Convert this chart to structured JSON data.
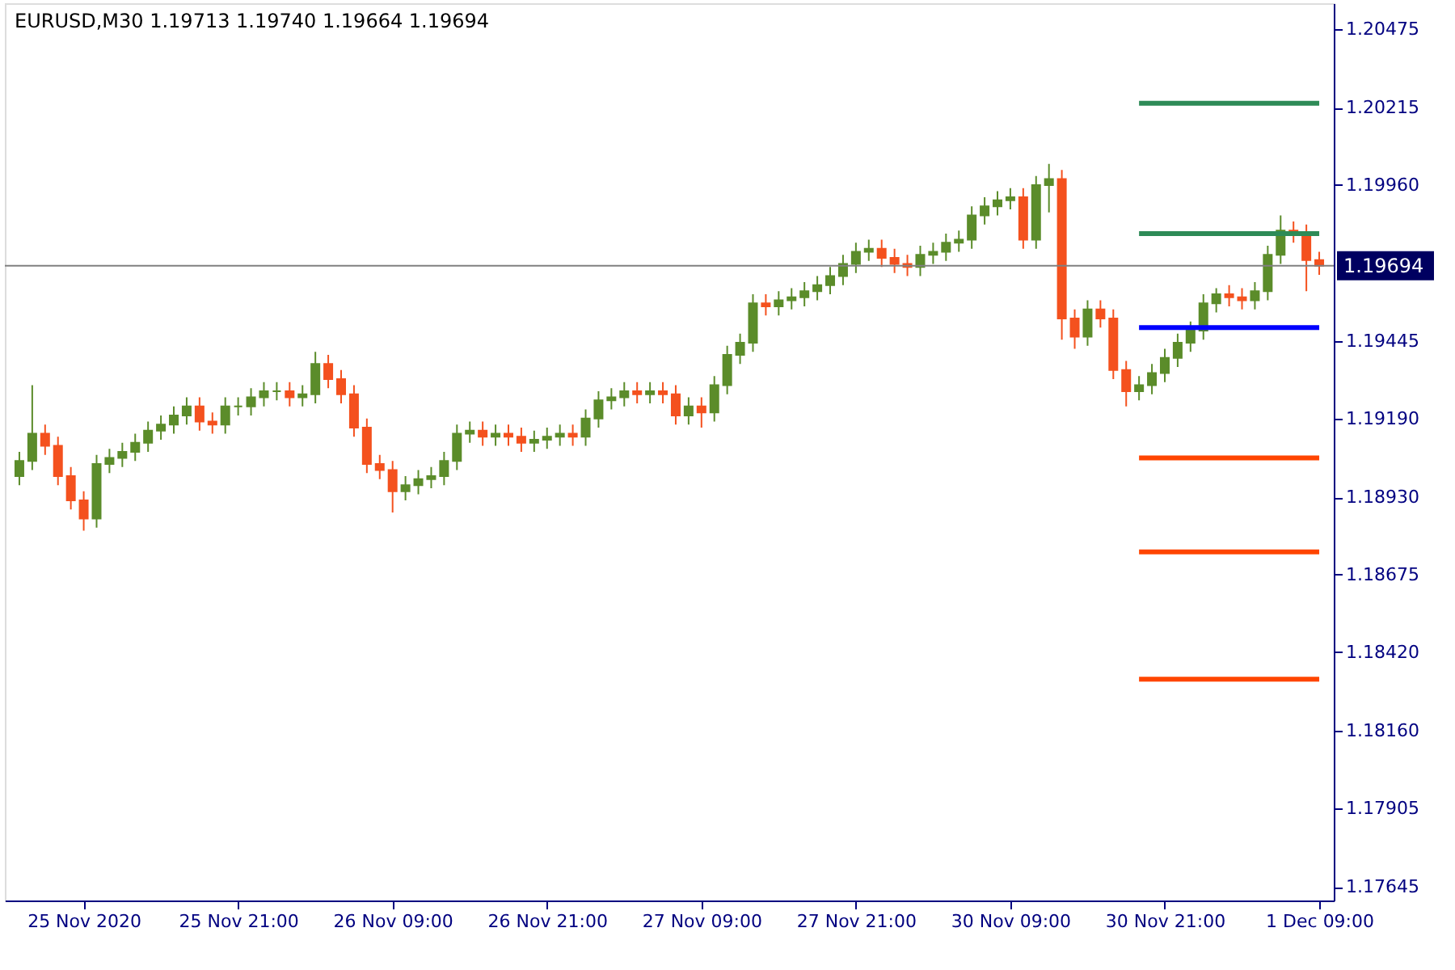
{
  "chart_data": {
    "type": "candlestick",
    "title": "EURUSD,M30  1.19713 1.19740 1.19664 1.19694",
    "categories": [
      null,
      null,
      null,
      null,
      null,
      "25 Nov 2020",
      null,
      null,
      null,
      null,
      null,
      null,
      null,
      null,
      null,
      null,
      null,
      "25 Nov 21:00",
      null,
      null,
      null,
      null,
      null,
      null,
      null,
      null,
      null,
      null,
      null,
      "26 Nov 09:00",
      null,
      null,
      null,
      null,
      null,
      null,
      null,
      null,
      null,
      null,
      null,
      "26 Nov 21:00",
      null,
      null,
      null,
      null,
      null,
      null,
      null,
      null,
      null,
      null,
      null,
      "27 Nov 09:00",
      null,
      null,
      null,
      null,
      null,
      null,
      null,
      null,
      null,
      null,
      null,
      "27 Nov 21:00",
      null,
      null,
      null,
      null,
      null,
      null,
      null,
      null,
      null,
      null,
      null,
      "30 Nov 09:00",
      null,
      null,
      null,
      null,
      null,
      null,
      null,
      null,
      null,
      null,
      null,
      "30 Nov 21:00",
      null,
      null,
      null,
      null,
      null,
      null,
      null,
      null,
      null,
      null,
      null,
      "1 Dec 09:00"
    ],
    "ohlc": [
      [
        1.19,
        1.1908,
        1.1897,
        1.1905
      ],
      [
        1.1905,
        1.193,
        1.1902,
        1.1914
      ],
      [
        1.1914,
        1.1917,
        1.1907,
        1.191
      ],
      [
        1.191,
        1.1913,
        1.1897,
        1.19
      ],
      [
        1.19,
        1.1903,
        1.1889,
        1.1892
      ],
      [
        1.1892,
        1.1895,
        1.1882,
        1.1886
      ],
      [
        1.1886,
        1.1907,
        1.1883,
        1.1904
      ],
      [
        1.1904,
        1.1909,
        1.1901,
        1.1906
      ],
      [
        1.1906,
        1.1911,
        1.1903,
        1.1908
      ],
      [
        1.1908,
        1.1914,
        1.1905,
        1.1911
      ],
      [
        1.1911,
        1.1918,
        1.1908,
        1.1915
      ],
      [
        1.1915,
        1.192,
        1.1912,
        1.1917
      ],
      [
        1.1917,
        1.1923,
        1.1914,
        1.192
      ],
      [
        1.192,
        1.1926,
        1.1917,
        1.1923
      ],
      [
        1.1923,
        1.1926,
        1.1915,
        1.1918
      ],
      [
        1.1918,
        1.1921,
        1.1914,
        1.1917
      ],
      [
        1.1917,
        1.1926,
        1.1914,
        1.1923
      ],
      [
        1.1923,
        1.1926,
        1.192,
        1.1923
      ],
      [
        1.1923,
        1.1929,
        1.192,
        1.1926
      ],
      [
        1.1926,
        1.1931,
        1.1923,
        1.1928
      ],
      [
        1.1928,
        1.1931,
        1.1925,
        1.1928
      ],
      [
        1.1928,
        1.1931,
        1.1923,
        1.1926
      ],
      [
        1.1926,
        1.193,
        1.1923,
        1.1927
      ],
      [
        1.1927,
        1.1941,
        1.1924,
        1.1937
      ],
      [
        1.1937,
        1.194,
        1.1929,
        1.1932
      ],
      [
        1.1932,
        1.1935,
        1.1924,
        1.1927
      ],
      [
        1.1927,
        1.193,
        1.1913,
        1.1916
      ],
      [
        1.1916,
        1.1919,
        1.1901,
        1.1904
      ],
      [
        1.1904,
        1.1907,
        1.1899,
        1.1902
      ],
      [
        1.1902,
        1.1905,
        1.1888,
        1.1895
      ],
      [
        1.1895,
        1.19,
        1.1892,
        1.1897
      ],
      [
        1.1897,
        1.1902,
        1.1894,
        1.1899
      ],
      [
        1.1899,
        1.1903,
        1.1896,
        1.19
      ],
      [
        1.19,
        1.1908,
        1.1897,
        1.1905
      ],
      [
        1.1905,
        1.1917,
        1.1902,
        1.1914
      ],
      [
        1.1914,
        1.1918,
        1.1911,
        1.1915
      ],
      [
        1.1915,
        1.1918,
        1.191,
        1.1913
      ],
      [
        1.1913,
        1.1917,
        1.191,
        1.1914
      ],
      [
        1.1914,
        1.1917,
        1.191,
        1.1913
      ],
      [
        1.1913,
        1.1916,
        1.1908,
        1.1911
      ],
      [
        1.1911,
        1.1915,
        1.1908,
        1.1912
      ],
      [
        1.1912,
        1.1916,
        1.1909,
        1.1913
      ],
      [
        1.1913,
        1.1917,
        1.191,
        1.1914
      ],
      [
        1.1914,
        1.1917,
        1.191,
        1.1913
      ],
      [
        1.1913,
        1.1922,
        1.191,
        1.1919
      ],
      [
        1.1919,
        1.1928,
        1.1916,
        1.1925
      ],
      [
        1.1925,
        1.1929,
        1.1922,
        1.1926
      ],
      [
        1.1926,
        1.1931,
        1.1923,
        1.1928
      ],
      [
        1.1928,
        1.1931,
        1.1924,
        1.1927
      ],
      [
        1.1927,
        1.1931,
        1.1924,
        1.1928
      ],
      [
        1.1928,
        1.1931,
        1.1924,
        1.1927
      ],
      [
        1.1927,
        1.193,
        1.1917,
        1.192
      ],
      [
        1.192,
        1.1926,
        1.1917,
        1.1923
      ],
      [
        1.1923,
        1.1926,
        1.1916,
        1.1921
      ],
      [
        1.1921,
        1.1933,
        1.1918,
        1.193
      ],
      [
        1.193,
        1.1943,
        1.1927,
        1.194
      ],
      [
        1.194,
        1.1947,
        1.1937,
        1.1944
      ],
      [
        1.1944,
        1.196,
        1.1941,
        1.1957
      ],
      [
        1.1957,
        1.196,
        1.1953,
        1.1956
      ],
      [
        1.1956,
        1.1961,
        1.1953,
        1.1958
      ],
      [
        1.1958,
        1.1962,
        1.1955,
        1.1959
      ],
      [
        1.1959,
        1.1964,
        1.1956,
        1.1961
      ],
      [
        1.1961,
        1.1966,
        1.1958,
        1.1963
      ],
      [
        1.1963,
        1.1969,
        1.196,
        1.1966
      ],
      [
        1.1966,
        1.1973,
        1.1963,
        1.197
      ],
      [
        1.197,
        1.1977,
        1.1967,
        1.1974
      ],
      [
        1.1974,
        1.1978,
        1.1971,
        1.1975
      ],
      [
        1.1975,
        1.1978,
        1.1969,
        1.1972
      ],
      [
        1.1972,
        1.1975,
        1.1967,
        1.197
      ],
      [
        1.197,
        1.1973,
        1.1966,
        1.1969
      ],
      [
        1.1969,
        1.1976,
        1.1966,
        1.1973
      ],
      [
        1.1973,
        1.1977,
        1.197,
        1.1974
      ],
      [
        1.1974,
        1.198,
        1.1971,
        1.1977
      ],
      [
        1.1977,
        1.1981,
        1.1974,
        1.1978
      ],
      [
        1.1978,
        1.1989,
        1.1975,
        1.1986
      ],
      [
        1.1986,
        1.1992,
        1.1983,
        1.1989
      ],
      [
        1.1989,
        1.1994,
        1.1986,
        1.1991
      ],
      [
        1.1991,
        1.1995,
        1.1988,
        1.1992
      ],
      [
        1.1992,
        1.1995,
        1.1975,
        1.1978
      ],
      [
        1.1978,
        1.1999,
        1.1975,
        1.1996
      ],
      [
        1.1996,
        1.2003,
        1.1987,
        1.1998
      ],
      [
        1.1998,
        1.2001,
        1.1945,
        1.1952
      ],
      [
        1.1952,
        1.1955,
        1.1942,
        1.1946
      ],
      [
        1.1946,
        1.1958,
        1.1943,
        1.1955
      ],
      [
        1.1955,
        1.1958,
        1.1949,
        1.1952
      ],
      [
        1.1952,
        1.1955,
        1.1932,
        1.1935
      ],
      [
        1.1935,
        1.1938,
        1.1923,
        1.1928
      ],
      [
        1.1928,
        1.1933,
        1.1925,
        1.193
      ],
      [
        1.193,
        1.1937,
        1.1927,
        1.1934
      ],
      [
        1.1934,
        1.1942,
        1.1931,
        1.1939
      ],
      [
        1.1939,
        1.1947,
        1.1936,
        1.1944
      ],
      [
        1.1944,
        1.1951,
        1.1941,
        1.1948
      ],
      [
        1.1948,
        1.196,
        1.1945,
        1.1957
      ],
      [
        1.1957,
        1.1962,
        1.1954,
        1.196
      ],
      [
        1.196,
        1.1963,
        1.1956,
        1.1959
      ],
      [
        1.1959,
        1.1962,
        1.1955,
        1.1958
      ],
      [
        1.1958,
        1.1964,
        1.1955,
        1.1961
      ],
      [
        1.1961,
        1.1976,
        1.1958,
        1.1973
      ],
      [
        1.1973,
        1.1986,
        1.197,
        1.1981
      ],
      [
        1.1981,
        1.1984,
        1.1977,
        1.198
      ],
      [
        1.198,
        1.1983,
        1.1961,
        1.19713
      ],
      [
        1.19713,
        1.1974,
        1.19664,
        1.19694
      ]
    ],
    "colors": [
      "#5b8c2a",
      "#5b8c2a",
      "#f4511e",
      "#f4511e",
      "#f4511e",
      "#f4511e",
      "#5b8c2a",
      "#5b8c2a",
      "#5b8c2a",
      "#5b8c2a",
      "#5b8c2a",
      "#5b8c2a",
      "#5b8c2a",
      "#5b8c2a",
      "#f4511e",
      "#f4511e",
      "#5b8c2a",
      "#5b8c2a",
      "#5b8c2a",
      "#5b8c2a",
      "#5b8c2a",
      "#f4511e",
      "#5b8c2a",
      "#5b8c2a",
      "#f4511e",
      "#f4511e",
      "#f4511e",
      "#f4511e",
      "#f4511e",
      "#f4511e",
      "#5b8c2a",
      "#5b8c2a",
      "#5b8c2a",
      "#5b8c2a",
      "#5b8c2a",
      "#5b8c2a",
      "#f4511e",
      "#5b8c2a",
      "#f4511e",
      "#f4511e",
      "#5b8c2a",
      "#5b8c2a",
      "#5b8c2a",
      "#f4511e",
      "#5b8c2a",
      "#5b8c2a",
      "#5b8c2a",
      "#5b8c2a",
      "#f4511e",
      "#5b8c2a",
      "#f4511e",
      "#f4511e",
      "#5b8c2a",
      "#f4511e",
      "#5b8c2a",
      "#5b8c2a",
      "#5b8c2a",
      "#5b8c2a",
      "#f4511e",
      "#5b8c2a",
      "#5b8c2a",
      "#5b8c2a",
      "#5b8c2a",
      "#5b8c2a",
      "#5b8c2a",
      "#5b8c2a",
      "#5b8c2a",
      "#f4511e",
      "#f4511e",
      "#f4511e",
      "#5b8c2a",
      "#5b8c2a",
      "#5b8c2a",
      "#5b8c2a",
      "#5b8c2a",
      "#5b8c2a",
      "#5b8c2a",
      "#5b8c2a",
      "#f4511e",
      "#5b8c2a",
      "#5b8c2a",
      "#f4511e",
      "#f4511e",
      "#5b8c2a",
      "#f4511e",
      "#f4511e",
      "#f4511e",
      "#5b8c2a",
      "#5b8c2a",
      "#5b8c2a",
      "#5b8c2a",
      "#5b8c2a",
      "#5b8c2a",
      "#5b8c2a",
      "#f4511e",
      "#f4511e",
      "#5b8c2a",
      "#5b8c2a",
      "#5b8c2a",
      "#f4511e",
      "#f4511e",
      "#f4511e"
    ],
    "series": [
      {
        "type": "line",
        "color": "#2e8b57",
        "values": [
          null,
          null,
          null,
          null,
          null,
          null,
          null,
          null,
          null,
          null,
          null,
          null,
          null,
          null,
          null,
          null,
          null,
          null,
          null,
          null,
          null,
          null,
          null,
          null,
          null,
          null,
          null,
          null,
          null,
          null,
          null,
          null,
          null,
          null,
          null,
          null,
          null,
          null,
          null,
          null,
          null,
          null,
          null,
          null,
          null,
          null,
          null,
          null,
          null,
          null,
          null,
          null,
          null,
          null,
          null,
          null,
          null,
          null,
          null,
          null,
          null,
          null,
          null,
          null,
          null,
          null,
          null,
          null,
          null,
          null,
          null,
          null,
          null,
          null,
          null,
          null,
          null,
          null,
          null,
          null,
          null,
          null,
          null,
          null,
          null,
          null,
          null,
          1.2023,
          1.2023,
          1.2023,
          1.2023,
          1.2023,
          1.2023,
          1.2023,
          1.2023,
          1.2023,
          1.2023,
          1.2023,
          1.2023,
          1.2023,
          1.2023,
          1.2023
        ]
      },
      {
        "type": "line",
        "color": "#2e8b57",
        "values": [
          null,
          null,
          null,
          null,
          null,
          null,
          null,
          null,
          null,
          null,
          null,
          null,
          null,
          null,
          null,
          null,
          null,
          null,
          null,
          null,
          null,
          null,
          null,
          null,
          null,
          null,
          null,
          null,
          null,
          null,
          null,
          null,
          null,
          null,
          null,
          null,
          null,
          null,
          null,
          null,
          null,
          null,
          null,
          null,
          null,
          null,
          null,
          null,
          null,
          null,
          null,
          null,
          null,
          null,
          null,
          null,
          null,
          null,
          null,
          null,
          null,
          null,
          null,
          null,
          null,
          null,
          null,
          null,
          null,
          null,
          null,
          null,
          null,
          null,
          null,
          null,
          null,
          null,
          null,
          null,
          null,
          null,
          null,
          null,
          null,
          null,
          null,
          1.198,
          1.198,
          1.198,
          1.198,
          1.198,
          1.198,
          1.198,
          1.198,
          1.198,
          1.198,
          1.198,
          1.198,
          1.198,
          1.198,
          1.198
        ]
      },
      {
        "type": "line",
        "color": "#0000ff",
        "values": [
          null,
          null,
          null,
          null,
          null,
          null,
          null,
          null,
          null,
          null,
          null,
          null,
          null,
          null,
          null,
          null,
          null,
          null,
          null,
          null,
          null,
          null,
          null,
          null,
          null,
          null,
          null,
          null,
          null,
          null,
          null,
          null,
          null,
          null,
          null,
          null,
          null,
          null,
          null,
          null,
          null,
          null,
          null,
          null,
          null,
          null,
          null,
          null,
          null,
          null,
          null,
          null,
          null,
          null,
          null,
          null,
          null,
          null,
          null,
          null,
          null,
          null,
          null,
          null,
          null,
          null,
          null,
          null,
          null,
          null,
          null,
          null,
          null,
          null,
          null,
          null,
          null,
          null,
          null,
          null,
          null,
          null,
          null,
          null,
          null,
          null,
          null,
          1.1949,
          1.1949,
          1.1949,
          1.1949,
          1.1949,
          1.1949,
          1.1949,
          1.1949,
          1.1949,
          1.1949,
          1.1949,
          1.1949,
          1.1949,
          1.1949,
          1.1949
        ]
      },
      {
        "type": "line",
        "color": "#ff4500",
        "values": [
          null,
          null,
          null,
          null,
          null,
          null,
          null,
          null,
          null,
          null,
          null,
          null,
          null,
          null,
          null,
          null,
          null,
          null,
          null,
          null,
          null,
          null,
          null,
          null,
          null,
          null,
          null,
          null,
          null,
          null,
          null,
          null,
          null,
          null,
          null,
          null,
          null,
          null,
          null,
          null,
          null,
          null,
          null,
          null,
          null,
          null,
          null,
          null,
          null,
          null,
          null,
          null,
          null,
          null,
          null,
          null,
          null,
          null,
          null,
          null,
          null,
          null,
          null,
          null,
          null,
          null,
          null,
          null,
          null,
          null,
          null,
          null,
          null,
          null,
          null,
          null,
          null,
          null,
          null,
          null,
          null,
          null,
          null,
          null,
          null,
          null,
          null,
          1.1906,
          1.1906,
          1.1906,
          1.1906,
          1.1906,
          1.1906,
          1.1906,
          1.1906,
          1.1906,
          1.1906,
          1.1906,
          1.1906,
          1.1906,
          1.1906,
          1.1906
        ]
      },
      {
        "type": "line",
        "color": "#ff4500",
        "values": [
          null,
          null,
          null,
          null,
          null,
          null,
          null,
          null,
          null,
          null,
          null,
          null,
          null,
          null,
          null,
          null,
          null,
          null,
          null,
          null,
          null,
          null,
          null,
          null,
          null,
          null,
          null,
          null,
          null,
          null,
          null,
          null,
          null,
          null,
          null,
          null,
          null,
          null,
          null,
          null,
          null,
          null,
          null,
          null,
          null,
          null,
          null,
          null,
          null,
          null,
          null,
          null,
          null,
          null,
          null,
          null,
          null,
          null,
          null,
          null,
          null,
          null,
          null,
          null,
          null,
          null,
          null,
          null,
          null,
          null,
          null,
          null,
          null,
          null,
          null,
          null,
          null,
          null,
          null,
          null,
          null,
          null,
          null,
          null,
          null,
          null,
          null,
          1.1875,
          1.1875,
          1.1875,
          1.1875,
          1.1875,
          1.1875,
          1.1875,
          1.1875,
          1.1875,
          1.1875,
          1.1875,
          1.1875,
          1.1875,
          1.1875,
          1.1875
        ]
      },
      {
        "type": "line",
        "color": "#ff4500",
        "values": [
          null,
          null,
          null,
          null,
          null,
          null,
          null,
          null,
          null,
          null,
          null,
          null,
          null,
          null,
          null,
          null,
          null,
          null,
          null,
          null,
          null,
          null,
          null,
          null,
          null,
          null,
          null,
          null,
          null,
          null,
          null,
          null,
          null,
          null,
          null,
          null,
          null,
          null,
          null,
          null,
          null,
          null,
          null,
          null,
          null,
          null,
          null,
          null,
          null,
          null,
          null,
          null,
          null,
          null,
          null,
          null,
          null,
          null,
          null,
          null,
          null,
          null,
          null,
          null,
          null,
          null,
          null,
          null,
          null,
          null,
          null,
          null,
          null,
          null,
          null,
          null,
          null,
          null,
          null,
          null,
          null,
          null,
          null,
          null,
          null,
          null,
          null,
          1.1833,
          1.1833,
          1.1833,
          1.1833,
          1.1833,
          1.1833,
          1.1833,
          1.1833,
          1.1833,
          1.1833,
          1.1833,
          1.1833,
          1.1833,
          1.1833,
          1.1833
        ]
      }
    ],
    "ylim": [
      1.176,
      1.2056
    ],
    "yticks": [
      1.17645,
      1.17905,
      {
        "value": 1.1816,
        "label": "1.18160"
      },
      {
        "value": 1.1842,
        "label": "1.18420"
      },
      1.18675,
      {
        "value": 1.1893,
        "label": "1.18930"
      },
      {
        "value": 1.1919,
        "label": "1.19190"
      },
      1.19445,
      {
        "value": 1.1996,
        "label": "1.19960"
      },
      1.20215,
      1.20475
    ],
    "ref_lines": [
      {
        "axis": "y",
        "value": 1.19694,
        "label": "1.19694",
        "color": "#808080"
      }
    ],
    "grid": false
  }
}
